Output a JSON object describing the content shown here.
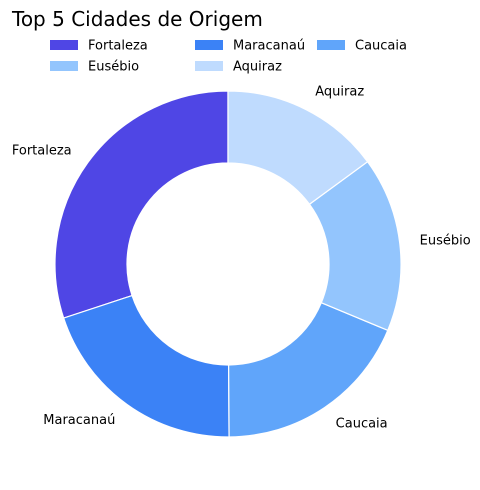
{
  "chart_data": {
    "type": "pie",
    "title": "Top 5 Cidades de Origem",
    "categories": [
      "Fortaleza",
      "Maracanaú",
      "Caucaia",
      "Eusébio",
      "Aquiraz"
    ],
    "values": [
      30.0,
      20.0,
      18.6,
      16.3,
      14.9
    ],
    "colors": [
      "#4f46e5",
      "#3b82f6",
      "#60a5fa",
      "#93c5fd",
      "#bfdbfe"
    ],
    "donut": true,
    "legend": "top-left"
  }
}
